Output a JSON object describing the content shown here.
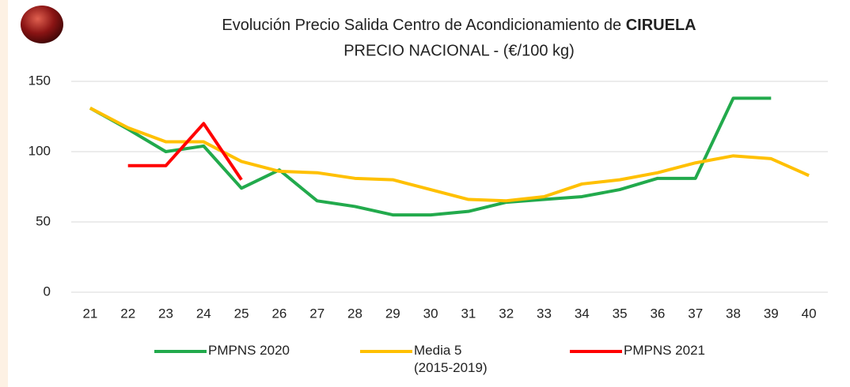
{
  "chart_data": {
    "type": "line",
    "title": "Evolución Precio Salida Centro de Acondicionamiento de",
    "title_emphasis": "CIRUELA",
    "subtitle": "PRECIO NACIONAL - (€/100 kg)",
    "categories": [
      "21",
      "22",
      "23",
      "24",
      "25",
      "26",
      "27",
      "28",
      "29",
      "30",
      "31",
      "32",
      "33",
      "34",
      "35",
      "36",
      "37",
      "38",
      "39",
      "40"
    ],
    "series": [
      {
        "name": "PMPNS 2020",
        "color": "#22aa4c",
        "values": [
          131,
          116,
          100,
          104,
          74,
          87,
          65,
          61,
          55,
          55,
          57.5,
          64,
          66,
          68,
          73,
          81,
          81,
          138,
          138,
          null
        ]
      },
      {
        "name": "Media 5 (2015-2019)",
        "color": "#ffc000",
        "values": [
          131,
          117,
          107,
          107,
          93,
          86,
          85,
          81,
          80,
          73,
          66,
          65,
          68,
          77,
          80,
          85,
          92,
          97,
          95,
          83
        ]
      },
      {
        "name": "PMPNS 2021",
        "color": "#ff0000",
        "values": [
          null,
          90,
          90,
          120,
          80,
          null,
          null,
          null,
          null,
          null,
          null,
          null,
          null,
          null,
          null,
          null,
          null,
          null,
          null,
          null
        ]
      }
    ],
    "ylim": [
      0,
      150
    ],
    "yticks": [
      0,
      50,
      100,
      150
    ],
    "grid": true
  }
}
